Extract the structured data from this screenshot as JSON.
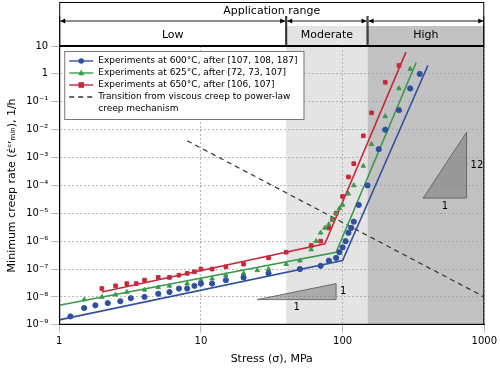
{
  "chart_data": {
    "type": "scatter",
    "x_label": "Stress (σ), MPa",
    "y_label": "Minimum creep rate (ε̇ᶜʳₘᵢₙ), 1/h",
    "log": true,
    "grid": true,
    "legend": "upper left",
    "xlim": [
      1,
      1000
    ],
    "xticks": [
      1,
      10,
      100,
      1000
    ],
    "ylim": [
      1e-09,
      10
    ],
    "yticks": [
      {
        "value": 1e-09,
        "label": "10⁻⁹"
      },
      {
        "value": 1e-08,
        "label": "10⁻⁸"
      },
      {
        "value": 1e-07,
        "label": "10⁻⁷"
      },
      {
        "value": 1e-06,
        "label": "10⁻⁶"
      },
      {
        "value": 1e-05,
        "label": "10⁻⁵"
      },
      {
        "value": 0.0001,
        "label": "10⁻⁴"
      },
      {
        "value": 0.001,
        "label": "10⁻³"
      },
      {
        "value": 0.01,
        "label": "10⁻²"
      },
      {
        "value": 0.1,
        "label": "10⁻¹"
      },
      1,
      10
    ],
    "application_range": {
      "title": "Application range",
      "regions": [
        {
          "label": "Low",
          "from": 1,
          "to": 40
        },
        {
          "label": "Moderate",
          "from": 40,
          "to": 150,
          "color": "#e4e4e4"
        },
        {
          "label": "High",
          "from": 150,
          "to": 1000,
          "color": "#c2c2c2"
        }
      ]
    },
    "series": [
      {
        "name": "Experiments at 600°C, after [107, 108, 187]",
        "color": "#2f4f9f",
        "marker": "circle",
        "line_style": "solid",
        "x": [
          1.2,
          1.5,
          1.8,
          2.2,
          2.7,
          3.2,
          4,
          5,
          6,
          7,
          8,
          9,
          10,
          12,
          15,
          20,
          30,
          50,
          70,
          80,
          90,
          95,
          100,
          105,
          110,
          115,
          120,
          130,
          150,
          180,
          200,
          250,
          300,
          350
        ],
        "values": [
          2e-09,
          4e-09,
          5e-09,
          6e-09,
          7e-09,
          9e-09,
          1e-08,
          1.3e-08,
          1.5e-08,
          2e-08,
          2e-08,
          2.5e-08,
          3e-08,
          3e-08,
          4e-08,
          5e-08,
          7e-08,
          1e-07,
          1.3e-07,
          2e-07,
          2.5e-07,
          4e-07,
          6e-07,
          1e-06,
          2e-06,
          3e-06,
          5e-06,
          2e-05,
          0.0001,
          0.002,
          0.01,
          0.05,
          0.3,
          1
        ],
        "fit_x": [
          1,
          100,
          400
        ],
        "fit_values": [
          1.5e-09,
          2e-07,
          2
        ]
      },
      {
        "name": "Experiments at 625°C, after [72, 73, 107]",
        "color": "#3a9a4a",
        "marker": "triangle",
        "line_style": "solid",
        "x": [
          1.5,
          2,
          2.5,
          3,
          4,
          5,
          6,
          8,
          10,
          12,
          15,
          20,
          25,
          30,
          40,
          50,
          60,
          65,
          70,
          75,
          80,
          85,
          90,
          95,
          100,
          110,
          120,
          140,
          160,
          200,
          250,
          300
        ],
        "values": [
          8e-09,
          1e-08,
          1.2e-08,
          1.5e-08,
          1.8e-08,
          2.2e-08,
          2.5e-08,
          3e-08,
          4e-08,
          4.5e-08,
          6e-08,
          7e-08,
          9e-08,
          1e-07,
          1.5e-07,
          2e-07,
          5e-07,
          1e-06,
          2e-06,
          3e-06,
          4e-06,
          6e-06,
          1e-05,
          1.5e-05,
          2e-05,
          5e-05,
          0.0001,
          0.0005,
          0.003,
          0.03,
          0.3,
          1.5
        ],
        "fit_x": [
          1,
          90,
          330
        ],
        "fit_values": [
          5e-09,
          4e-07,
          2.5
        ]
      },
      {
        "name": "Experiments at 650°C, after [106, 107]",
        "color": "#c8283c",
        "marker": "square",
        "line_style": "solid",
        "x": [
          2,
          2.5,
          3,
          3.5,
          4,
          5,
          6,
          7,
          8,
          9,
          10,
          12,
          15,
          20,
          30,
          40,
          60,
          70,
          80,
          85,
          90,
          100,
          110,
          120,
          140,
          160,
          200,
          250
        ],
        "values": [
          2e-08,
          2.5e-08,
          3e-08,
          3e-08,
          4e-08,
          5e-08,
          5e-08,
          6e-08,
          7e-08,
          8e-08,
          1e-07,
          1e-07,
          1.2e-07,
          1.5e-07,
          2.5e-07,
          4e-07,
          7e-07,
          1e-06,
          3e-06,
          6e-06,
          1e-05,
          4e-05,
          0.0002,
          0.0006,
          0.006,
          0.04,
          0.5,
          2
        ],
        "fit_x": [
          2,
          75,
          280
        ],
        "fit_values": [
          1.5e-08,
          8e-07,
          6
        ]
      },
      {
        "name": "Transition from viscous creep to power-law creep mechanism",
        "color": "#333333",
        "type": "line",
        "line_style": "dashed",
        "x": [
          8,
          1000
        ],
        "values": [
          0.004,
          1e-08
        ]
      }
    ],
    "slope_triangles": [
      {
        "x": [
          25,
          90
        ],
        "y": [
          8e-09,
          3e-08
        ],
        "run_label": "1",
        "rise_label": "1"
      },
      {
        "x": [
          370,
          750
        ],
        "y": [
          3.5e-05,
          0.008
        ],
        "run_label": "1",
        "rise_label": "12"
      }
    ]
  }
}
